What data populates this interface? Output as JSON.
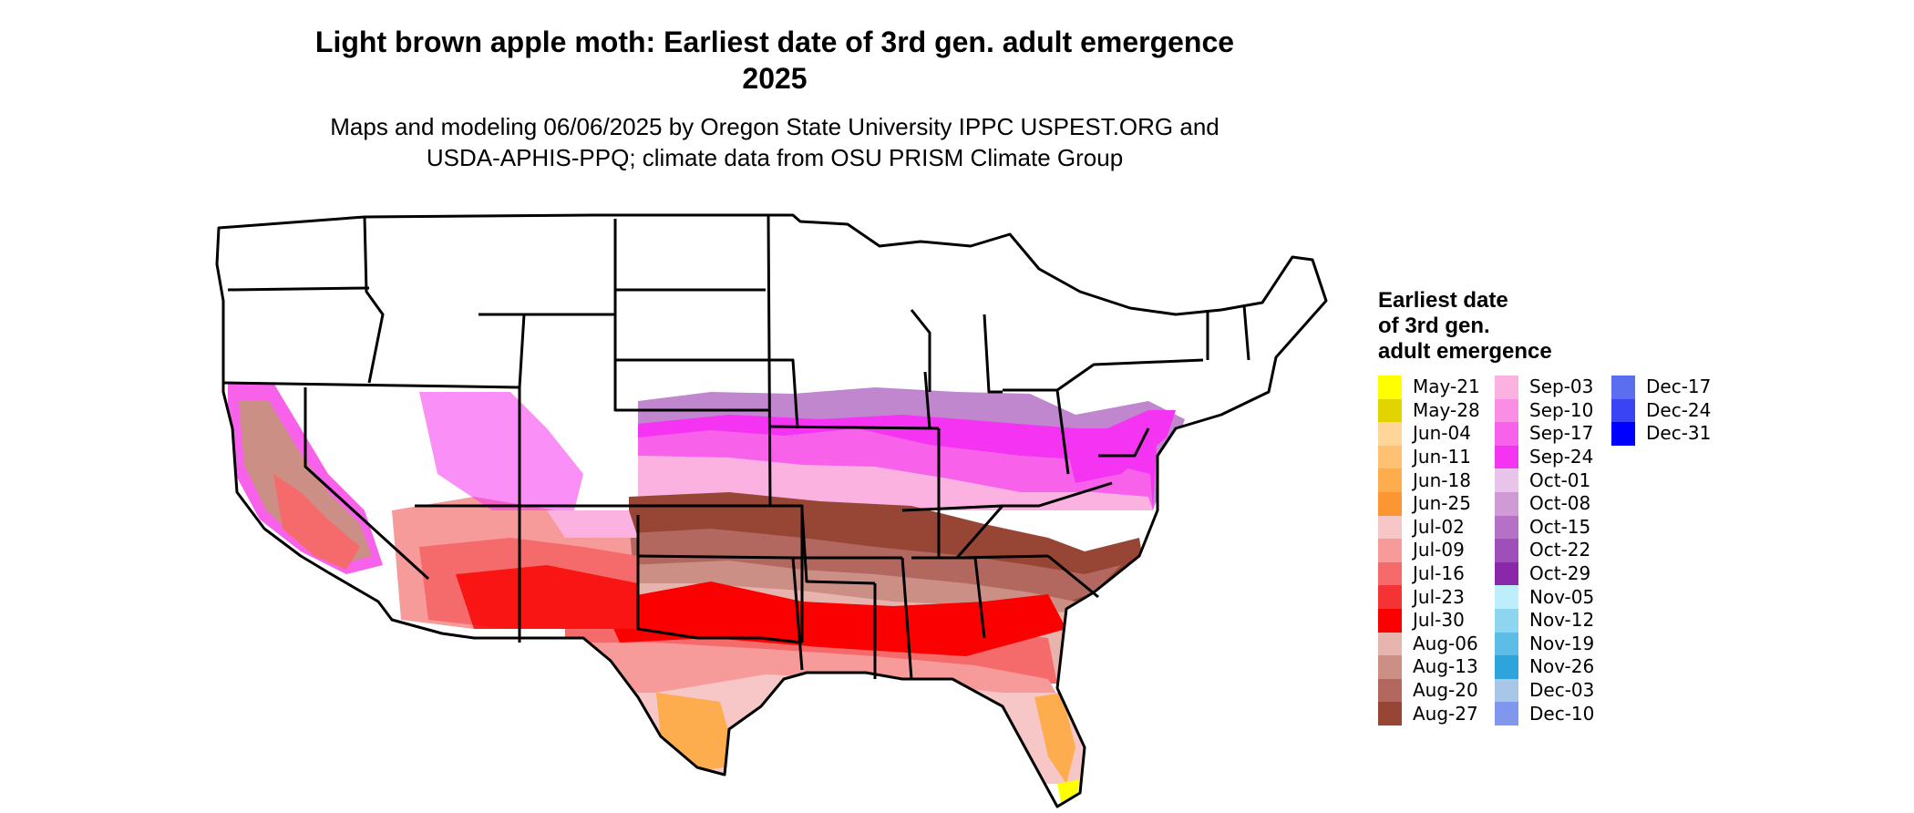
{
  "header": {
    "title_line1": "Light brown apple moth: Earliest date of 3rd gen. adult emergence",
    "title_line2": "2025",
    "subtitle_line1": "Maps and modeling 06/06/2025 by Oregon State University IPPC USPEST.ORG and",
    "subtitle_line2": "USDA-APHIS-PPQ; climate data from OSU PRISM Climate Group"
  },
  "legend": {
    "title_lines": [
      "Earliest date",
      "of 3rd gen.",
      "adult emergence"
    ],
    "items": [
      {
        "label": "May-21",
        "color": "#ffff00"
      },
      {
        "label": "May-28",
        "color": "#e1d400"
      },
      {
        "label": "Jun-04",
        "color": "#ffd59a"
      },
      {
        "label": "Jun-11",
        "color": "#ffc173"
      },
      {
        "label": "Jun-18",
        "color": "#fdac4e"
      },
      {
        "label": "Jun-25",
        "color": "#fb9632"
      },
      {
        "label": "Jul-02",
        "color": "#f7c6c6"
      },
      {
        "label": "Jul-09",
        "color": "#f79a9a"
      },
      {
        "label": "Jul-16",
        "color": "#f56a6a"
      },
      {
        "label": "Jul-23",
        "color": "#f43434"
      },
      {
        "label": "Jul-30",
        "color": "#fb0000"
      },
      {
        "label": "Aug-06",
        "color": "#e6b3ad"
      },
      {
        "label": "Aug-13",
        "color": "#cc8f86"
      },
      {
        "label": "Aug-20",
        "color": "#b3685f"
      },
      {
        "label": "Aug-27",
        "color": "#974636"
      },
      {
        "label": "Sep-03",
        "color": "#fbb2e1"
      },
      {
        "label": "Sep-10",
        "color": "#fa8ee5"
      },
      {
        "label": "Sep-17",
        "color": "#f862ea"
      },
      {
        "label": "Sep-24",
        "color": "#f533f3"
      },
      {
        "label": "Oct-01",
        "color": "#e8c4ea"
      },
      {
        "label": "Oct-08",
        "color": "#cf9ad5"
      },
      {
        "label": "Oct-15",
        "color": "#b571c6"
      },
      {
        "label": "Oct-22",
        "color": "#9f4fb9"
      },
      {
        "label": "Oct-29",
        "color": "#8a28aa"
      },
      {
        "label": "Nov-05",
        "color": "#bdeefb"
      },
      {
        "label": "Nov-12",
        "color": "#8ed6f0"
      },
      {
        "label": "Nov-19",
        "color": "#5dbde6"
      },
      {
        "label": "Nov-26",
        "color": "#2da4dc"
      },
      {
        "label": "Dec-03",
        "color": "#a7c6e8"
      },
      {
        "label": "Dec-10",
        "color": "#7f97ec"
      },
      {
        "label": "Dec-17",
        "color": "#5b6ef0"
      },
      {
        "label": "Dec-24",
        "color": "#3a44f4"
      },
      {
        "label": "Dec-31",
        "color": "#0000ff"
      }
    ]
  },
  "map": {
    "background": "#ffffff",
    "border_color": "#000000"
  }
}
